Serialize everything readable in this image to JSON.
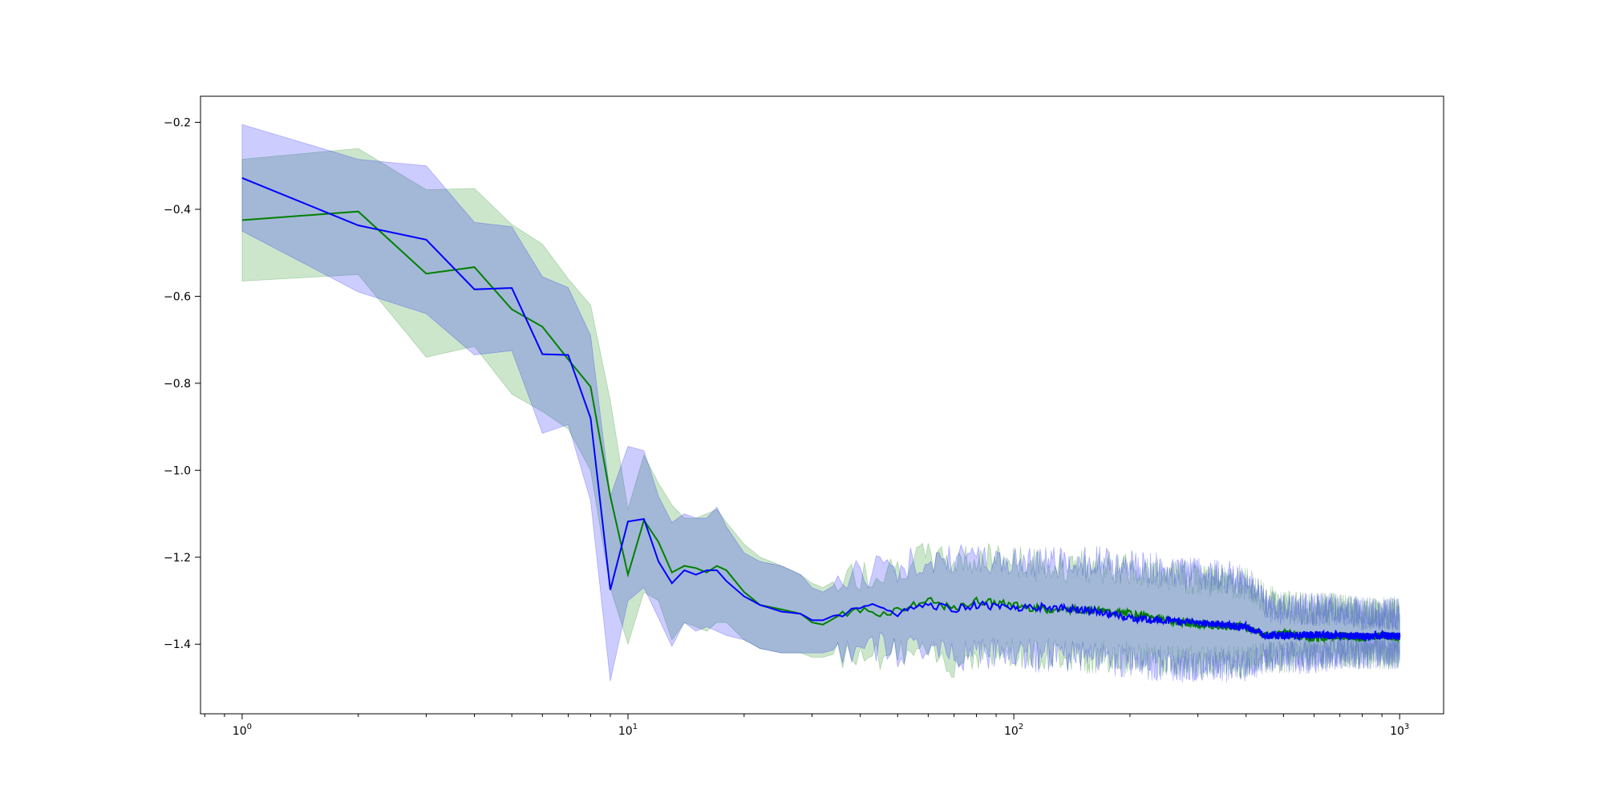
{
  "chart_data": {
    "type": "line",
    "title": "",
    "xlabel": "",
    "ylabel": "",
    "x_scale": "log",
    "xlim": [
      0.78,
      1300
    ],
    "ylim": [
      -1.56,
      -0.14
    ],
    "grid": false,
    "legend": "none",
    "y_ticks": [
      {
        "value": -0.2,
        "label": "−0.2"
      },
      {
        "value": -0.4,
        "label": "−0.4"
      },
      {
        "value": -0.6,
        "label": "−0.6"
      },
      {
        "value": -0.8,
        "label": "−0.8"
      },
      {
        "value": -1.0,
        "label": "−1.0"
      },
      {
        "value": -1.2,
        "label": "−1.2"
      },
      {
        "value": -1.4,
        "label": "−1.4"
      }
    ],
    "x_ticks": [
      {
        "value": 1,
        "base": "10",
        "exp": "0"
      },
      {
        "value": 10,
        "base": "10",
        "exp": "1"
      },
      {
        "value": 100,
        "base": "10",
        "exp": "2"
      },
      {
        "value": 1000,
        "base": "10",
        "exp": "3"
      }
    ],
    "series": [
      {
        "color": "#008000",
        "band_color": "#008000",
        "band_opacity": 0.2,
        "points": [
          [
            1,
            -0.425,
            -0.285,
            -0.565
          ],
          [
            2,
            -0.405,
            -0.26,
            -0.55
          ],
          [
            3,
            -0.548,
            -0.355,
            -0.74
          ],
          [
            4,
            -0.533,
            -0.352,
            -0.715
          ],
          [
            5,
            -0.63,
            -0.435,
            -0.825
          ],
          [
            6,
            -0.67,
            -0.48,
            -0.865
          ],
          [
            7,
            -0.745,
            -0.56,
            -0.905
          ],
          [
            8,
            -0.808,
            -0.62,
            -1.0
          ],
          [
            9,
            -1.06,
            -0.84,
            -1.27
          ],
          [
            10,
            -1.24,
            -1.09,
            -1.4
          ],
          [
            11,
            -1.115,
            -0.965,
            -1.28
          ],
          [
            12,
            -1.165,
            -1.03,
            -1.3
          ],
          [
            13,
            -1.235,
            -1.08,
            -1.39
          ],
          [
            14,
            -1.22,
            -1.11,
            -1.35
          ],
          [
            15,
            -1.225,
            -1.11,
            -1.36
          ],
          [
            16,
            -1.235,
            -1.1,
            -1.37
          ],
          [
            17,
            -1.22,
            -1.09,
            -1.35
          ],
          [
            18,
            -1.23,
            -1.12,
            -1.35
          ],
          [
            20,
            -1.28,
            -1.17,
            -1.39
          ],
          [
            22,
            -1.31,
            -1.2,
            -1.41
          ],
          [
            25,
            -1.32,
            -1.22,
            -1.42
          ],
          [
            28,
            -1.33,
            -1.24,
            -1.42
          ],
          [
            30,
            -1.35,
            -1.26,
            -1.43
          ],
          [
            32,
            -1.355,
            -1.27,
            -1.43
          ],
          [
            35,
            -1.335,
            -1.25,
            -1.42
          ],
          [
            40,
            -1.32,
            -1.24,
            -1.41
          ],
          [
            45,
            -1.33,
            -1.23,
            -1.42
          ],
          [
            50,
            -1.32,
            -1.22,
            -1.42
          ],
          [
            55,
            -1.31,
            -1.21,
            -1.42
          ],
          [
            60,
            -1.3,
            -1.2,
            -1.43
          ],
          [
            70,
            -1.32,
            -1.21,
            -1.44
          ],
          [
            80,
            -1.3,
            -1.2,
            -1.42
          ],
          [
            100,
            -1.31,
            -1.21,
            -1.42
          ],
          [
            120,
            -1.32,
            -1.22,
            -1.42
          ],
          [
            150,
            -1.32,
            -1.22,
            -1.43
          ],
          [
            200,
            -1.33,
            -1.23,
            -1.43
          ],
          [
            250,
            -1.345,
            -1.24,
            -1.44
          ],
          [
            300,
            -1.355,
            -1.25,
            -1.44
          ],
          [
            400,
            -1.36,
            -1.26,
            -1.44
          ],
          [
            450,
            -1.38,
            -1.3,
            -1.43
          ],
          [
            500,
            -1.375,
            -1.31,
            -1.43
          ],
          [
            600,
            -1.385,
            -1.32,
            -1.42
          ],
          [
            700,
            -1.38,
            -1.32,
            -1.42
          ],
          [
            800,
            -1.385,
            -1.33,
            -1.42
          ],
          [
            900,
            -1.38,
            -1.33,
            -1.42
          ],
          [
            1000,
            -1.385,
            -1.33,
            -1.42
          ]
        ]
      },
      {
        "color": "#0000ff",
        "band_color": "#0000ff",
        "band_opacity": 0.2,
        "points": [
          [
            1,
            -0.328,
            -0.205,
            -0.45
          ],
          [
            2,
            -0.437,
            -0.285,
            -0.59
          ],
          [
            3,
            -0.47,
            -0.3,
            -0.64
          ],
          [
            4,
            -0.584,
            -0.43,
            -0.735
          ],
          [
            5,
            -0.581,
            -0.44,
            -0.725
          ],
          [
            6,
            -0.733,
            -0.555,
            -0.915
          ],
          [
            7,
            -0.735,
            -0.58,
            -0.895
          ],
          [
            8,
            -0.88,
            -0.69,
            -1.07
          ],
          [
            9,
            -1.275,
            -1.06,
            -1.485
          ],
          [
            10,
            -1.118,
            -0.945,
            -1.3
          ],
          [
            11,
            -1.112,
            -0.955,
            -1.27
          ],
          [
            12,
            -1.21,
            -1.06,
            -1.34
          ],
          [
            13,
            -1.26,
            -1.12,
            -1.405
          ],
          [
            14,
            -1.23,
            -1.1,
            -1.35
          ],
          [
            15,
            -1.24,
            -1.11,
            -1.37
          ],
          [
            16,
            -1.23,
            -1.11,
            -1.36
          ],
          [
            17,
            -1.23,
            -1.085,
            -1.37
          ],
          [
            18,
            -1.255,
            -1.13,
            -1.38
          ],
          [
            20,
            -1.29,
            -1.19,
            -1.39
          ],
          [
            22,
            -1.31,
            -1.21,
            -1.41
          ],
          [
            25,
            -1.325,
            -1.22,
            -1.42
          ],
          [
            28,
            -1.33,
            -1.24,
            -1.42
          ],
          [
            30,
            -1.345,
            -1.27,
            -1.42
          ],
          [
            32,
            -1.345,
            -1.28,
            -1.42
          ],
          [
            35,
            -1.33,
            -1.26,
            -1.41
          ],
          [
            40,
            -1.32,
            -1.24,
            -1.41
          ],
          [
            45,
            -1.31,
            -1.22,
            -1.41
          ],
          [
            50,
            -1.33,
            -1.22,
            -1.42
          ],
          [
            55,
            -1.32,
            -1.21,
            -1.42
          ],
          [
            60,
            -1.31,
            -1.2,
            -1.42
          ],
          [
            70,
            -1.32,
            -1.21,
            -1.43
          ],
          [
            80,
            -1.31,
            -1.2,
            -1.42
          ],
          [
            100,
            -1.315,
            -1.21,
            -1.42
          ],
          [
            120,
            -1.315,
            -1.21,
            -1.43
          ],
          [
            150,
            -1.32,
            -1.21,
            -1.43
          ],
          [
            200,
            -1.34,
            -1.22,
            -1.44
          ],
          [
            250,
            -1.345,
            -1.23,
            -1.45
          ],
          [
            300,
            -1.35,
            -1.24,
            -1.45
          ],
          [
            400,
            -1.36,
            -1.25,
            -1.45
          ],
          [
            450,
            -1.38,
            -1.31,
            -1.43
          ],
          [
            500,
            -1.38,
            -1.32,
            -1.43
          ],
          [
            600,
            -1.378,
            -1.32,
            -1.43
          ],
          [
            700,
            -1.38,
            -1.32,
            -1.42
          ],
          [
            800,
            -1.382,
            -1.33,
            -1.42
          ],
          [
            900,
            -1.38,
            -1.33,
            -1.42
          ],
          [
            1000,
            -1.382,
            -1.33,
            -1.42
          ]
        ]
      }
    ]
  }
}
